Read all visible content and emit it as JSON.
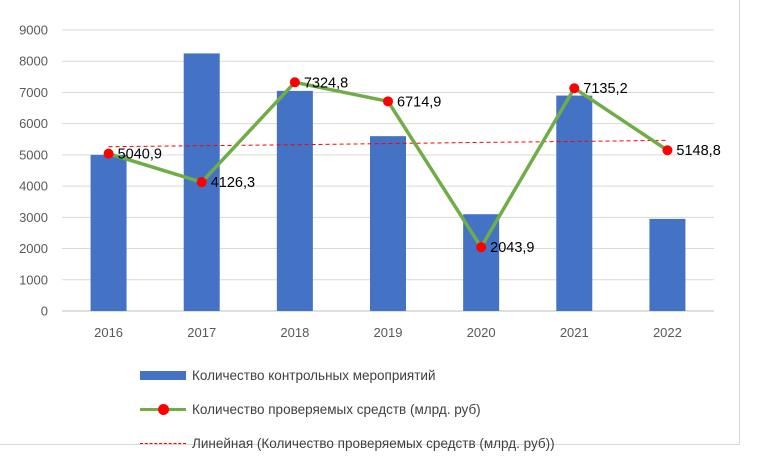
{
  "chart_data": {
    "type": "bar+line",
    "categories": [
      "2016",
      "2017",
      "2018",
      "2019",
      "2020",
      "2021",
      "2022"
    ],
    "ylim": [
      0,
      9000
    ],
    "yticks": [
      0,
      1000,
      2000,
      3000,
      4000,
      5000,
      6000,
      7000,
      8000,
      9000
    ],
    "grid": true,
    "legend_position": "bottom",
    "series": [
      {
        "name": "Количество контрольных мероприятий",
        "type": "bar",
        "color": "#4472c4",
        "values": [
          5000,
          8250,
          7050,
          5600,
          3100,
          6900,
          2950
        ]
      },
      {
        "name": "Количество проверяемых средств (млрд. руб)",
        "type": "line",
        "color": "#70ad47",
        "marker_color": "#ff0000",
        "values": [
          5040.9,
          4126.3,
          7324.8,
          6714.9,
          2043.9,
          7135.2,
          5148.8
        ],
        "data_labels": [
          "5040,9",
          "4126,3",
          "7324,8",
          "6714,9",
          "2043,9",
          "7135,2",
          "5148,8"
        ]
      },
      {
        "name": "Линейная (Количество проверяемых средств (млрд. руб))",
        "type": "trendline",
        "color": "#ff0000",
        "values": [
          5263,
          5294,
          5325,
          5363,
          5400,
          5430,
          5467
        ]
      }
    ]
  }
}
